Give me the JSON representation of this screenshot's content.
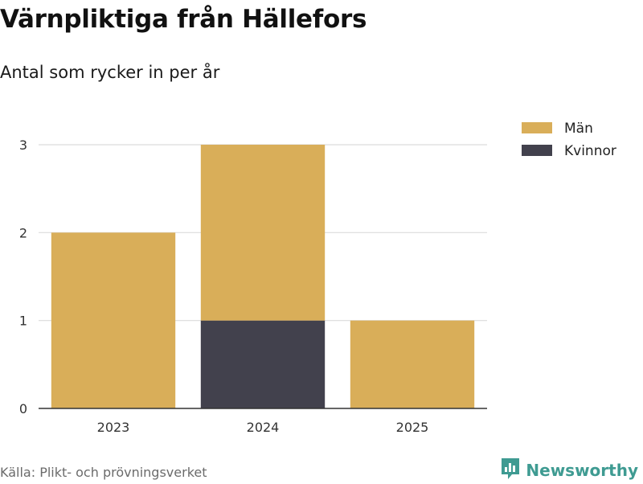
{
  "header": {
    "title": "Värnpliktiga från Hällefors",
    "subtitle": "Antal som rycker in per år"
  },
  "footer": {
    "source": "Källa: Plikt- och prövningsverket",
    "brand": "Newsworthy",
    "brand_icon": "bar-chart-speech-bubble-icon"
  },
  "chart_data": {
    "type": "bar",
    "stacked": true,
    "title": "Värnpliktiga från Hällefors",
    "subtitle": "Antal som rycker in per år",
    "categories": [
      "2023",
      "2024",
      "2025"
    ],
    "series": [
      {
        "name": "Kvinnor",
        "values": [
          0,
          1,
          0
        ],
        "color": "#42414d"
      },
      {
        "name": "Män",
        "values": [
          2,
          2,
          1
        ],
        "color": "#d9ae59"
      }
    ],
    "legend_order": [
      "Män",
      "Kvinnor"
    ],
    "yticks": [
      0,
      1,
      2,
      3
    ],
    "ylim": [
      0,
      3
    ],
    "grid": true,
    "legend_position": "top-right",
    "xlabel": "",
    "ylabel": ""
  }
}
